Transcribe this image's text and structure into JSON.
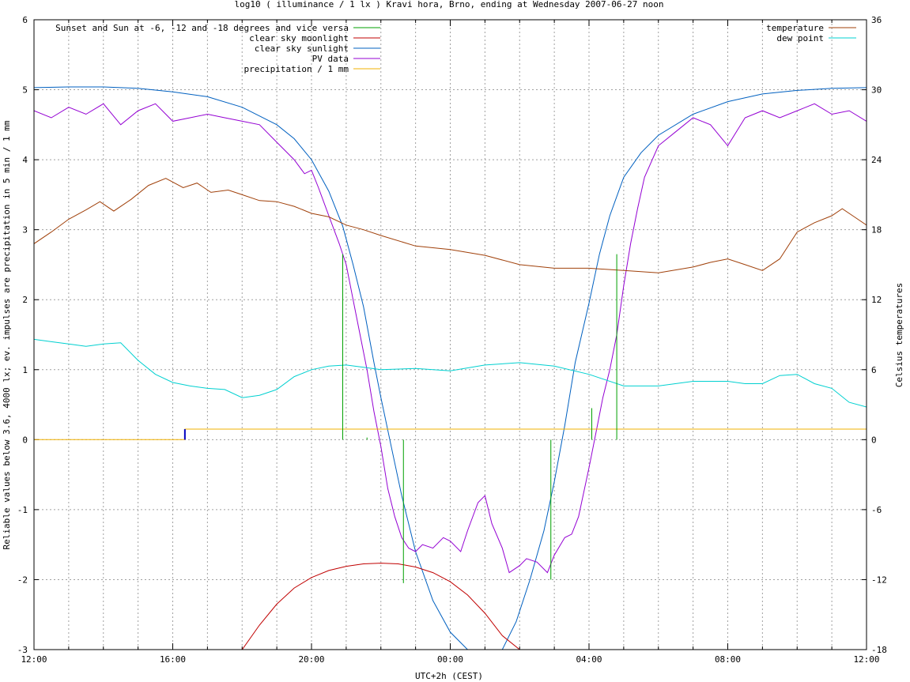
{
  "chart_data": {
    "type": "line",
    "title": "log10 ( illuminance / 1 lx ) Kravi hora, Brno, ending at Wednesday 2007-06-27 noon",
    "xlabel": "UTC+2h (CEST)",
    "ylabel": "Reliable values below 3.6, 4000 lx; ev. impulses are precipitation in 5 min / 1 mm",
    "y2label": "Celsius temperatures",
    "x_range_hours": [
      0,
      24
    ],
    "x_ticks": [
      {
        "h": 0,
        "label": "12:00"
      },
      {
        "h": 4,
        "label": "16:00"
      },
      {
        "h": 8,
        "label": "20:00"
      },
      {
        "h": 12,
        "label": "00:00"
      },
      {
        "h": 16,
        "label": "04:00"
      },
      {
        "h": 20,
        "label": "08:00"
      },
      {
        "h": 24,
        "label": "12:00"
      }
    ],
    "ylim": [
      -3,
      6
    ],
    "y_ticks": [
      "-3",
      "-2",
      "-1",
      "0",
      "1",
      "2",
      "3",
      "4",
      "5",
      "6"
    ],
    "y2lim": [
      -18,
      36
    ],
    "y2_ticks": [
      "-18",
      "-12",
      "-6",
      "0",
      "6",
      "12",
      "18",
      "24",
      "30",
      "36"
    ],
    "grid": true,
    "legend_left": [
      {
        "name": "Sunset and Sun at -6, -12 and -18 degrees and vice versa",
        "color": "#00a000"
      },
      {
        "name": "clear sky moonlight",
        "color": "#c00000"
      },
      {
        "name": "clear sky sunlight",
        "color": "#0060c0"
      },
      {
        "name": "PV data",
        "color": "#9400d3"
      },
      {
        "name": "precipitation / 1 mm",
        "color": "#f0b000"
      }
    ],
    "legend_right": [
      {
        "name": "temperature",
        "color": "#a0400a"
      },
      {
        "name": "dew point",
        "color": "#00d0d0"
      }
    ],
    "series": [
      {
        "name": "clear sky sunlight",
        "axis": "y",
        "color": "#0060c0",
        "x": [
          0,
          1,
          2,
          3,
          4,
          5,
          6,
          7,
          7.5,
          8,
          8.5,
          8.9,
          9.2,
          9.5,
          9.8,
          10,
          10.3,
          10.6,
          11,
          11.5,
          12,
          12.5,
          13,
          13.5,
          13.9,
          14.3,
          14.7,
          15,
          15.3,
          15.6,
          16,
          16.3,
          16.6,
          17,
          17.5,
          18,
          19,
          20,
          21,
          22,
          23,
          24
        ],
        "y": [
          5.03,
          5.04,
          5.04,
          5.02,
          4.97,
          4.9,
          4.75,
          4.5,
          4.3,
          4.0,
          3.55,
          3.05,
          2.5,
          1.9,
          1.1,
          0.6,
          -0.1,
          -0.8,
          -1.6,
          -2.3,
          -2.75,
          -3.0,
          -3.1,
          -3.0,
          -2.6,
          -2.0,
          -1.3,
          -0.6,
          0.2,
          1.1,
          1.95,
          2.65,
          3.2,
          3.75,
          4.1,
          4.35,
          4.65,
          4.83,
          4.94,
          4.99,
          5.02,
          5.03
        ]
      },
      {
        "name": "clear sky moonlight",
        "axis": "y",
        "color": "#c00000",
        "x": [
          6.0,
          6.5,
          7,
          7.5,
          8,
          8.5,
          9,
          9.5,
          10,
          10.5,
          11,
          11.5,
          12,
          12.5,
          13,
          13.5,
          14.0
        ],
        "y": [
          -3.0,
          -2.65,
          -2.35,
          -2.12,
          -1.97,
          -1.87,
          -1.81,
          -1.775,
          -1.765,
          -1.775,
          -1.82,
          -1.9,
          -2.03,
          -2.22,
          -2.48,
          -2.8,
          -3.0
        ]
      },
      {
        "name": "PV data",
        "axis": "y",
        "color": "#9400d3",
        "x": [
          0,
          0.5,
          1,
          1.5,
          2,
          2.5,
          3,
          3.5,
          4,
          4.5,
          5,
          5.5,
          6,
          6.5,
          7,
          7.5,
          7.8,
          8.0,
          8.2,
          8.5,
          8.8,
          9.0,
          9.2,
          9.4,
          9.6,
          9.8,
          10,
          10.2,
          10.4,
          10.6,
          10.8,
          11.0,
          11.2,
          11.5,
          11.8,
          12.0,
          12.3,
          12.5,
          12.8,
          13.0,
          13.2,
          13.5,
          13.7,
          14.0,
          14.2,
          14.5,
          14.8,
          15.0,
          15.3,
          15.5,
          15.7,
          16.0,
          16.2,
          16.4,
          16.6,
          16.8,
          17.0,
          17.2,
          17.4,
          17.6,
          18.0,
          18.5,
          19.0,
          19.5,
          20.0,
          20.5,
          21.0,
          21.5,
          22.0,
          22.5,
          23.0,
          23.5,
          24.0
        ],
        "y": [
          4.7,
          4.6,
          4.75,
          4.65,
          4.8,
          4.5,
          4.7,
          4.8,
          4.55,
          4.6,
          4.65,
          4.6,
          4.55,
          4.5,
          4.25,
          4.0,
          3.8,
          3.85,
          3.6,
          3.2,
          2.8,
          2.5,
          2.0,
          1.5,
          1.0,
          0.4,
          -0.1,
          -0.7,
          -1.1,
          -1.4,
          -1.55,
          -1.6,
          -1.5,
          -1.55,
          -1.4,
          -1.45,
          -1.6,
          -1.3,
          -0.9,
          -0.8,
          -1.2,
          -1.55,
          -1.9,
          -1.8,
          -1.7,
          -1.75,
          -1.9,
          -1.65,
          -1.4,
          -1.35,
          -1.1,
          -0.4,
          0.1,
          0.6,
          1.0,
          1.5,
          2.2,
          2.8,
          3.3,
          3.75,
          4.2,
          4.4,
          4.6,
          4.5,
          4.2,
          4.6,
          4.7,
          4.6,
          4.7,
          4.8,
          4.65,
          4.7,
          4.55
        ]
      },
      {
        "name": "temperature",
        "axis": "y2",
        "color": "#a0400a",
        "x": [
          0,
          0.5,
          1,
          1.5,
          1.9,
          2.3,
          2.8,
          3.3,
          3.8,
          4.3,
          4.7,
          5.1,
          5.6,
          6.0,
          6.5,
          7.0,
          7.5,
          8.0,
          8.5,
          9.0,
          9.5,
          10.0,
          11.0,
          12.0,
          13.0,
          14.0,
          15.0,
          16.0,
          17.0,
          18.0,
          19.0,
          19.5,
          20.0,
          20.5,
          21.0,
          21.5,
          22.0,
          22.5,
          23.0,
          23.3,
          23.6,
          24.0
        ],
        "y": [
          16.8,
          17.8,
          18.9,
          19.7,
          20.4,
          19.6,
          20.6,
          21.8,
          22.4,
          21.6,
          22.0,
          21.2,
          21.4,
          21.0,
          20.5,
          20.4,
          20.0,
          19.4,
          19.1,
          18.4,
          18.0,
          17.5,
          16.6,
          16.3,
          15.8,
          15.0,
          14.7,
          14.7,
          14.5,
          14.3,
          14.8,
          15.2,
          15.5,
          15.0,
          14.5,
          15.5,
          17.8,
          18.6,
          19.2,
          19.8,
          19.2,
          18.4
        ]
      },
      {
        "name": "dew point",
        "axis": "y2",
        "color": "#00d0d0",
        "x": [
          0,
          0.5,
          1,
          1.5,
          2,
          2.5,
          3,
          3.5,
          4,
          4.5,
          5,
          5.5,
          6,
          6.5,
          7,
          7.5,
          8,
          8.5,
          9,
          9.5,
          10,
          11,
          12,
          13,
          14,
          15,
          16,
          17,
          18,
          19,
          20,
          20.5,
          21,
          21.5,
          22,
          22.5,
          23,
          23.5,
          24
        ],
        "y": [
          8.6,
          8.4,
          8.2,
          8.0,
          8.2,
          8.3,
          6.8,
          5.6,
          4.9,
          4.6,
          4.4,
          4.3,
          3.6,
          3.8,
          4.3,
          5.4,
          6.0,
          6.3,
          6.4,
          6.2,
          6.0,
          6.1,
          5.9,
          6.4,
          6.6,
          6.3,
          5.6,
          4.6,
          4.6,
          5.0,
          5.0,
          4.8,
          4.8,
          5.5,
          5.6,
          4.8,
          4.4,
          3.2,
          2.8
        ]
      },
      {
        "name": "precipitation / 1 mm",
        "axis": "y",
        "color": "#f0b000",
        "x": [
          0,
          4.35,
          4.35,
          24
        ],
        "y": [
          0,
          0,
          0.15,
          0.15
        ]
      }
    ],
    "sun_events": [
      {
        "h": 8.9,
        "top": 2.65,
        "bottom": 0
      },
      {
        "h": 9.6,
        "top": 0.03,
        "bottom": 0
      },
      {
        "h": 10.65,
        "top": 0,
        "bottom": -2.05
      },
      {
        "h": 14.9,
        "top": 0,
        "bottom": -2.0
      },
      {
        "h": 16.08,
        "top": 0.45,
        "bottom": 0
      },
      {
        "h": 16.8,
        "top": 2.65,
        "bottom": 0
      }
    ],
    "precip_impulse": {
      "h": 4.35,
      "value": 0.15
    }
  }
}
